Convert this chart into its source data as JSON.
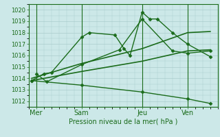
{
  "background_color": "#cce8e8",
  "grid_color": "#aacccc",
  "line_color": "#1a6b1a",
  "text_color": "#1a6b1a",
  "xlabel": "Pression niveau de la mer( hPa )",
  "ylim": [
    1011.5,
    1020.5
  ],
  "yticks": [
    1012,
    1013,
    1014,
    1015,
    1016,
    1017,
    1018,
    1019,
    1020
  ],
  "xtick_labels": [
    "Mer",
    "Sam",
    "Jeu",
    "Ven"
  ],
  "xtick_positions": [
    1,
    4,
    8,
    11
  ],
  "vline_positions": [
    1,
    4,
    8,
    11
  ],
  "xlim": [
    0.5,
    13.0
  ],
  "series": [
    {
      "x": [
        0.7,
        1.5,
        2.0,
        4.0,
        4.5,
        6.2,
        6.8,
        7.2,
        8.0,
        8.5,
        9.0,
        10.0,
        11.0,
        12.5
      ],
      "y": [
        1013.8,
        1014.4,
        1014.5,
        1017.6,
        1018.0,
        1017.8,
        1016.6,
        1016.0,
        1019.8,
        1019.2,
        1019.2,
        1018.0,
        1017.0,
        1015.9
      ],
      "marker": "D",
      "markersize": 2.5,
      "linewidth": 1.0
    },
    {
      "x": [
        1.0,
        1.7,
        4.0,
        6.5,
        8.0,
        10.0,
        11.0,
        12.5
      ],
      "y": [
        1014.4,
        1013.7,
        1015.2,
        1016.5,
        1019.2,
        1016.4,
        1016.2,
        1016.4
      ],
      "marker": "D",
      "markersize": 2.5,
      "linewidth": 1.0
    },
    {
      "x": [
        0.7,
        4.0,
        8.0,
        11.0,
        12.5
      ],
      "y": [
        1014.0,
        1015.3,
        1016.6,
        1018.0,
        1018.1
      ],
      "marker": null,
      "markersize": null,
      "linewidth": 1.2
    },
    {
      "x": [
        0.7,
        4.0,
        8.0,
        11.0,
        12.5
      ],
      "y": [
        1013.8,
        1014.6,
        1015.5,
        1016.4,
        1016.5
      ],
      "marker": null,
      "markersize": null,
      "linewidth": 1.2
    },
    {
      "x": [
        0.7,
        4.0,
        8.0,
        11.0,
        12.5
      ],
      "y": [
        1013.8,
        1013.4,
        1012.8,
        1012.2,
        1011.8
      ],
      "marker": "D",
      "markersize": 2.5,
      "linewidth": 1.0
    }
  ]
}
